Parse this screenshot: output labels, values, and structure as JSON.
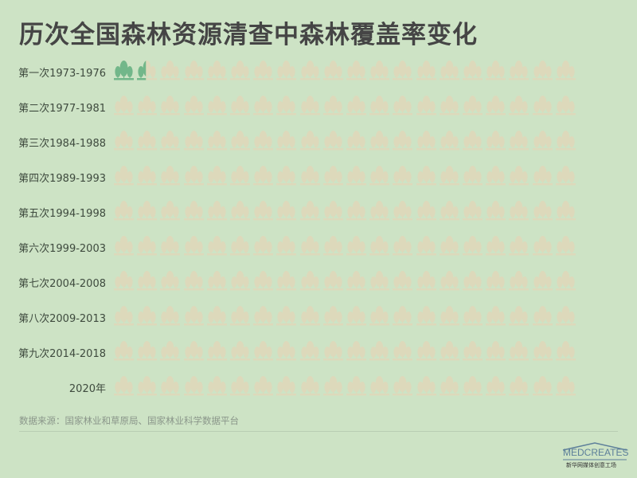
{
  "title": "历次全国森林资源清查中森林覆盖率变化",
  "chart_data": {
    "type": "pictogram",
    "icon": "trees-icon",
    "icons_per_row": 20,
    "categories": [
      "第一次1973-1976",
      "第二次1977-1981",
      "第三次1984-1988",
      "第四次1989-1993",
      "第五次1994-1998",
      "第六次1999-2003",
      "第七次2004-2008",
      "第八次2009-2013",
      "第九次2014-2018",
      "2020年"
    ],
    "filled_icons": [
      1.45,
      0,
      0,
      0,
      0,
      0,
      0,
      0,
      0,
      0
    ],
    "colors": {
      "filled": "#72b78a",
      "empty": "#ddd9bb",
      "background": "#cde3c5"
    }
  },
  "source": "数据来源：国家林业和草原局、国家林业科学数据平台",
  "logo": {
    "text": "MEDCREATES",
    "sub": "新华网媒体创意工场"
  }
}
